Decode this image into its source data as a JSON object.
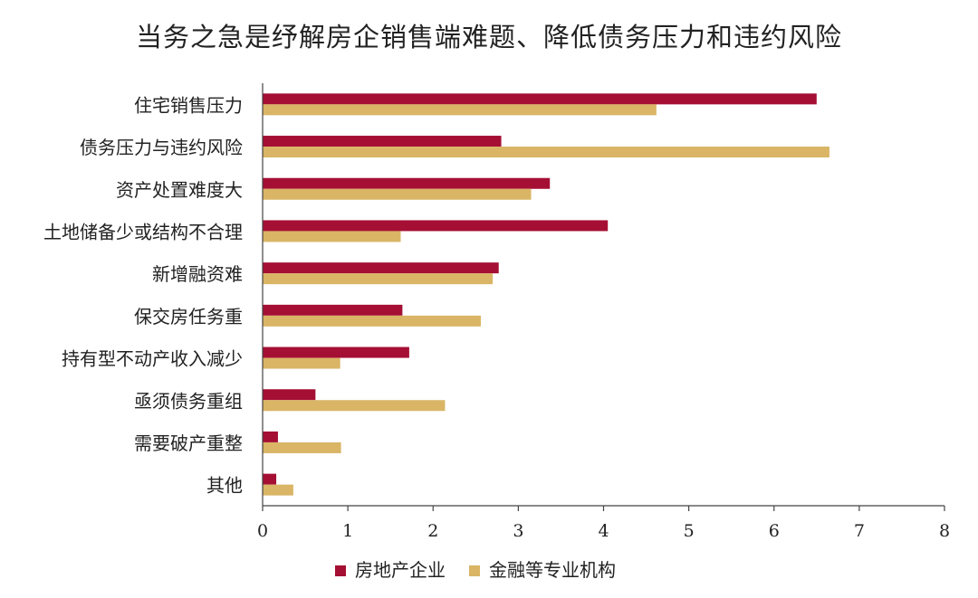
{
  "chart_data": {
    "type": "bar",
    "orientation": "horizontal",
    "title": "当务之急是纾解房企销售端难题、降低债务压力和违约风险",
    "xlabel": "",
    "ylabel": "",
    "xlim": [
      0,
      8
    ],
    "x_ticks": [
      0,
      1,
      2,
      3,
      4,
      5,
      6,
      7,
      8
    ],
    "grid": false,
    "legend_position": "bottom",
    "categories": [
      "住宅销售压力",
      "债务压力与违约风险",
      "资产处置难度大",
      "土地储备少或结构不合理",
      "新增融资难",
      "保交房任务重",
      "持有型不动产收入减少",
      "亟须债务重组",
      "需要破产重整",
      "其他"
    ],
    "series": [
      {
        "name": "房地产企业",
        "color": "#a50f34",
        "values": [
          6.5,
          2.8,
          3.37,
          4.05,
          2.77,
          1.64,
          1.72,
          0.62,
          0.18,
          0.16
        ]
      },
      {
        "name": "金融等专业机构",
        "color": "#d9b565",
        "values": [
          4.62,
          6.65,
          3.15,
          1.62,
          2.7,
          2.56,
          0.91,
          2.14,
          0.92,
          0.36
        ]
      }
    ]
  }
}
